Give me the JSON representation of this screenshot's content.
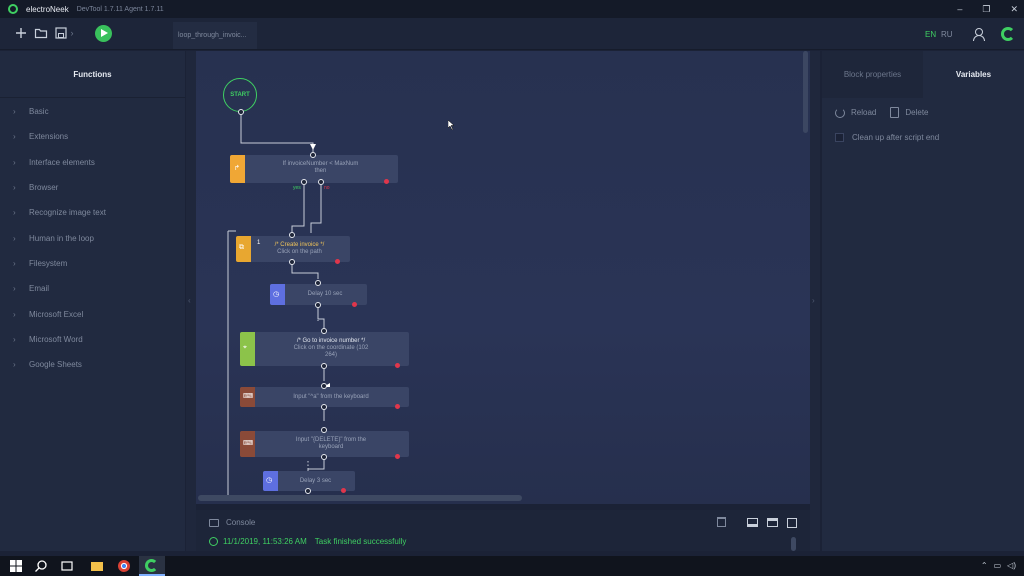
{
  "titlebar": {
    "app_name": "electroNeek",
    "version": "DevTool 1.7.11  Agent 1.7.11",
    "minimize": "–",
    "maximize": "❐",
    "close": "✕"
  },
  "toolbar": {
    "new_icon": "plus-icon",
    "open_icon": "folder-icon",
    "save_icon": "save-icon",
    "run_icon": "play-icon",
    "open_tab": "loop_through_invoic...",
    "lang_en": "EN",
    "lang_ru": "RU",
    "accent": "#3fcf62"
  },
  "functions": {
    "title": "Functions",
    "items": [
      {
        "label": "Basic"
      },
      {
        "label": "Extensions"
      },
      {
        "label": "Interface elements"
      },
      {
        "label": "Browser"
      },
      {
        "label": "Recognize image text"
      },
      {
        "label": "Human in the loop"
      },
      {
        "label": "Filesystem"
      },
      {
        "label": "Email"
      },
      {
        "label": "Microsoft Excel"
      },
      {
        "label": "Microsoft Word"
      },
      {
        "label": "Google Sheets"
      }
    ]
  },
  "flow": {
    "start": "START",
    "condition": {
      "line1": "If invoiceNumber < MaxNum",
      "line2": "then",
      "yes": "yes",
      "no": "no"
    },
    "create_invoice": {
      "badge": "1",
      "title": "/* Create invoice */",
      "subtitle": "Click on the path"
    },
    "delay1": "Delay 10 sec",
    "goto_invoice": {
      "title": "/* Go to invoice number */",
      "line1": "Click on the coordinate (102",
      "line2": "264)"
    },
    "input_keys": "Input \"^a\" from the keyboard",
    "input_delete": {
      "line1": "Input \"{DELETE}\" from the",
      "line2": "keyboard"
    },
    "delay2": "Delay 3 sec"
  },
  "console": {
    "label": "Console",
    "message_time": "11/1/2019, 11:53:26 AM",
    "message_text": "Task finished successfully"
  },
  "right_panel": {
    "tab_block_properties": "Block properties",
    "tab_variables": "Variables",
    "reload": "Reload",
    "delete": "Delete",
    "cleanup": "Clean up after script end"
  }
}
